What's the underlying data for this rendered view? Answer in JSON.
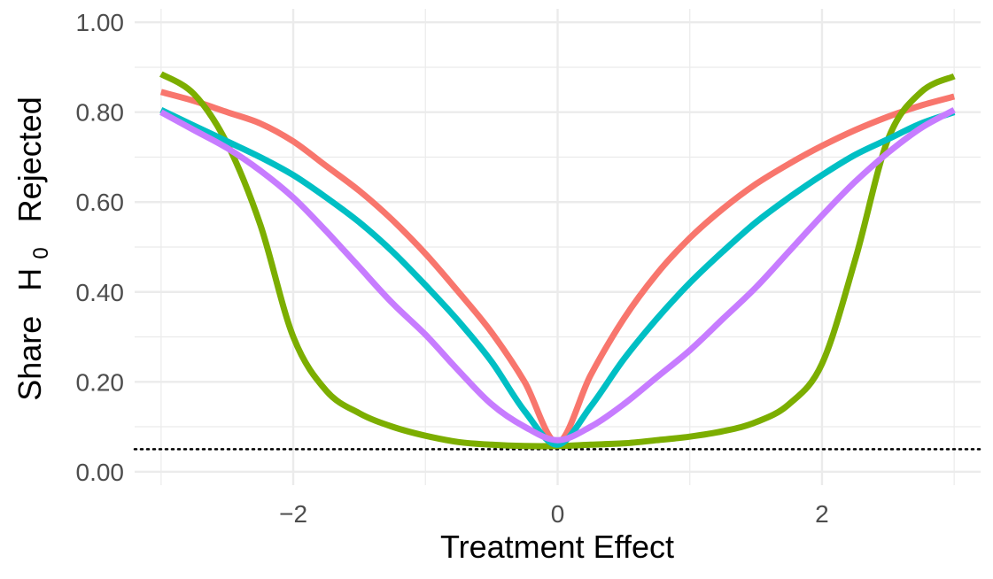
{
  "chart_data": {
    "type": "line",
    "xlabel": "Treatment Effect",
    "ylabel": {
      "prefix": "Share",
      "symbol": "H",
      "subscript": "0",
      "suffix": "Rejected"
    },
    "xlim": [
      -3.2,
      3.2
    ],
    "ylim": [
      -0.03,
      1.03
    ],
    "x_ticks": [
      -2,
      0,
      2
    ],
    "x_tick_labels": [
      "−2",
      "0",
      "2"
    ],
    "y_ticks": [
      0,
      0.2,
      0.4,
      0.6,
      0.8,
      1.0
    ],
    "y_tick_labels": [
      "0.00",
      "0.20",
      "0.40",
      "0.60",
      "0.80",
      "1.00"
    ],
    "grid": true,
    "reference_line": {
      "y": 0.05,
      "style": "dotted"
    },
    "x": [
      -3,
      -2.75,
      -2.5,
      -2.25,
      -2,
      -1.75,
      -1.5,
      -1.25,
      -1,
      -0.75,
      -0.5,
      -0.25,
      0,
      0.25,
      0.5,
      0.75,
      1,
      1.25,
      1.5,
      1.75,
      2,
      2.25,
      2.5,
      2.75,
      3
    ],
    "series": [
      {
        "color": "#F8766D",
        "values": [
          0.845,
          0.825,
          0.8,
          0.775,
          0.735,
          0.68,
          0.625,
          0.56,
          0.485,
          0.4,
          0.31,
          0.2,
          0.065,
          0.215,
          0.34,
          0.44,
          0.52,
          0.585,
          0.64,
          0.685,
          0.725,
          0.76,
          0.79,
          0.815,
          0.835
        ]
      },
      {
        "color": "#7CAE00",
        "values": [
          0.885,
          0.84,
          0.73,
          0.55,
          0.3,
          0.18,
          0.13,
          0.1,
          0.08,
          0.066,
          0.06,
          0.057,
          0.057,
          0.06,
          0.063,
          0.07,
          0.078,
          0.09,
          0.11,
          0.15,
          0.24,
          0.47,
          0.74,
          0.845,
          0.88
        ]
      },
      {
        "color": "#00BFC4",
        "values": [
          0.805,
          0.77,
          0.735,
          0.7,
          0.66,
          0.61,
          0.555,
          0.49,
          0.415,
          0.335,
          0.245,
          0.135,
          0.06,
          0.145,
          0.25,
          0.34,
          0.42,
          0.49,
          0.555,
          0.61,
          0.66,
          0.705,
          0.74,
          0.775,
          0.8
        ]
      },
      {
        "color": "#C77CFF",
        "values": [
          0.8,
          0.76,
          0.72,
          0.67,
          0.61,
          0.535,
          0.455,
          0.375,
          0.305,
          0.225,
          0.15,
          0.1,
          0.07,
          0.1,
          0.15,
          0.21,
          0.27,
          0.34,
          0.41,
          0.49,
          0.57,
          0.645,
          0.71,
          0.765,
          0.805
        ]
      }
    ]
  }
}
